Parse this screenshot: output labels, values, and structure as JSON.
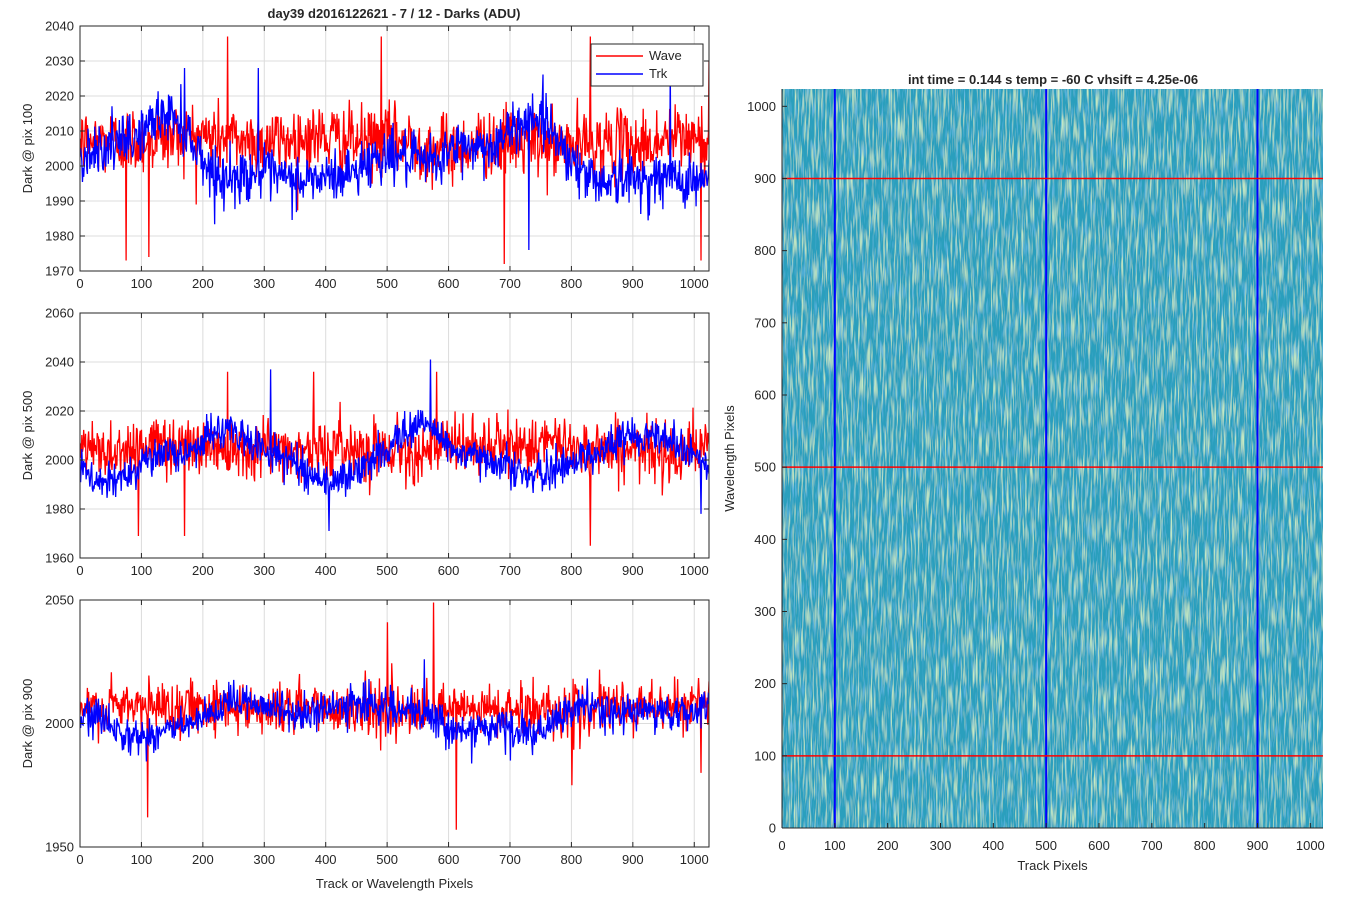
{
  "figure": {
    "title": "day39 d2016122621 - 7 / 12 - Darks (ADU)"
  },
  "colors": {
    "wave": "#ff0000",
    "trk": "#0000ff",
    "grid": "#dcdcdc",
    "axis": "#262626",
    "image_base": "#2a9fbd",
    "image_light": "#8fd08a",
    "image_dark": "#1f7fc4"
  },
  "chart_data": [
    {
      "type": "line",
      "id": "pix100",
      "title": "day39 d2016122621 - 7 / 12 - Darks (ADU)",
      "xlabel": "",
      "ylabel": "Dark @ pix 100",
      "xlim": [
        0,
        1024
      ],
      "ylim": [
        1970,
        2040
      ],
      "xticks": [
        0,
        100,
        200,
        300,
        400,
        500,
        600,
        700,
        800,
        900,
        1000
      ],
      "yticks": [
        1970,
        1980,
        1990,
        2000,
        2010,
        2020,
        2030,
        2040
      ],
      "grid": true,
      "legend": {
        "position": "top-right",
        "entries": [
          "Wave",
          "Trk"
        ]
      },
      "series": [
        {
          "name": "Wave",
          "color": "#ff0000",
          "n_points": 1024,
          "mean": 2007,
          "noise_sd": 6.5,
          "wander_sd": 1.5,
          "spikes": [
            [
              75,
              1973
            ],
            [
              112,
              1974
            ],
            [
              240,
              2037
            ],
            [
              490,
              2037
            ],
            [
              690,
              1972
            ],
            [
              830,
              2037
            ],
            [
              1010,
              1973
            ],
            [
              1024,
              2030
            ]
          ]
        },
        {
          "name": "Trk",
          "color": "#0000ff",
          "n_points": 1024,
          "mean": 2002,
          "noise_sd": 5,
          "wander_sd": 9,
          "spikes": [
            [
              170,
              2028
            ],
            [
              290,
              2028
            ],
            [
              730,
              1976
            ],
            [
              960,
              2028
            ]
          ]
        }
      ]
    },
    {
      "type": "line",
      "id": "pix500",
      "xlabel": "",
      "ylabel": "Dark @ pix 500",
      "xlim": [
        0,
        1024
      ],
      "ylim": [
        1960,
        2060
      ],
      "xticks": [
        0,
        100,
        200,
        300,
        400,
        500,
        600,
        700,
        800,
        900,
        1000
      ],
      "yticks": [
        1960,
        1980,
        2000,
        2020,
        2040,
        2060
      ],
      "grid": true,
      "series": [
        {
          "name": "Wave",
          "color": "#ff0000",
          "n_points": 1024,
          "mean": 2005,
          "noise_sd": 8,
          "wander_sd": 1.5,
          "spikes": [
            [
              95,
              1969
            ],
            [
              170,
              1969
            ],
            [
              240,
              2036
            ],
            [
              380,
              2036
            ],
            [
              580,
              2036
            ],
            [
              830,
              1965
            ]
          ]
        },
        {
          "name": "Trk",
          "color": "#0000ff",
          "n_points": 1024,
          "mean": 2002,
          "noise_sd": 5,
          "wander_sd": 9,
          "spikes": [
            [
              310,
              2037
            ],
            [
              405,
              1971
            ],
            [
              570,
              2041
            ],
            [
              1010,
              1978
            ]
          ]
        }
      ]
    },
    {
      "type": "line",
      "id": "pix900",
      "xlabel": "Track or Wavelength Pixels",
      "ylabel": "Dark @ pix 900",
      "xlim": [
        0,
        1024
      ],
      "ylim": [
        1950,
        2050
      ],
      "xticks": [
        0,
        100,
        200,
        300,
        400,
        500,
        600,
        700,
        800,
        900,
        1000
      ],
      "yticks": [
        1950,
        2000,
        2050
      ],
      "grid": true,
      "series": [
        {
          "name": "Wave",
          "color": "#ff0000",
          "n_points": 1024,
          "mean": 2006,
          "noise_sd": 7,
          "wander_sd": 1.5,
          "spikes": [
            [
              110,
              1962
            ],
            [
              500,
              2041
            ],
            [
              575,
              2049
            ],
            [
              612,
              1957
            ],
            [
              800,
              1975
            ],
            [
              1010,
              1980
            ]
          ]
        },
        {
          "name": "Trk",
          "color": "#0000ff",
          "n_points": 1024,
          "mean": 2003,
          "noise_sd": 5,
          "wander_sd": 7,
          "spikes": [
            [
              470,
              2018
            ],
            [
              560,
              2026
            ],
            [
              700,
              1985
            ]
          ]
        }
      ]
    },
    {
      "type": "heatmap",
      "id": "dark-image",
      "title": "int time = 0.144 s   temp = -60 C   vhsift = 4.25e-06",
      "xlabel": "Track Pixels",
      "ylabel": "Wavelength Pixels",
      "xlim": [
        0,
        1024
      ],
      "ylim": [
        0,
        1024
      ],
      "xticks": [
        0,
        100,
        200,
        300,
        400,
        500,
        600,
        700,
        800,
        900,
        1000
      ],
      "yticks": [
        0,
        100,
        200,
        300,
        400,
        500,
        600,
        700,
        800,
        900,
        1000
      ],
      "grid": false,
      "overlay_lines": [
        {
          "orientation": "vertical",
          "value": 100,
          "color": "#0000ff"
        },
        {
          "orientation": "vertical",
          "value": 500,
          "color": "#0000ff"
        },
        {
          "orientation": "vertical",
          "value": 900,
          "color": "#0000ff"
        },
        {
          "orientation": "horizontal",
          "value": 100,
          "color": "#ff0000"
        },
        {
          "orientation": "horizontal",
          "value": 500,
          "color": "#ff0000"
        },
        {
          "orientation": "horizontal",
          "value": 900,
          "color": "#ff0000"
        }
      ]
    }
  ]
}
